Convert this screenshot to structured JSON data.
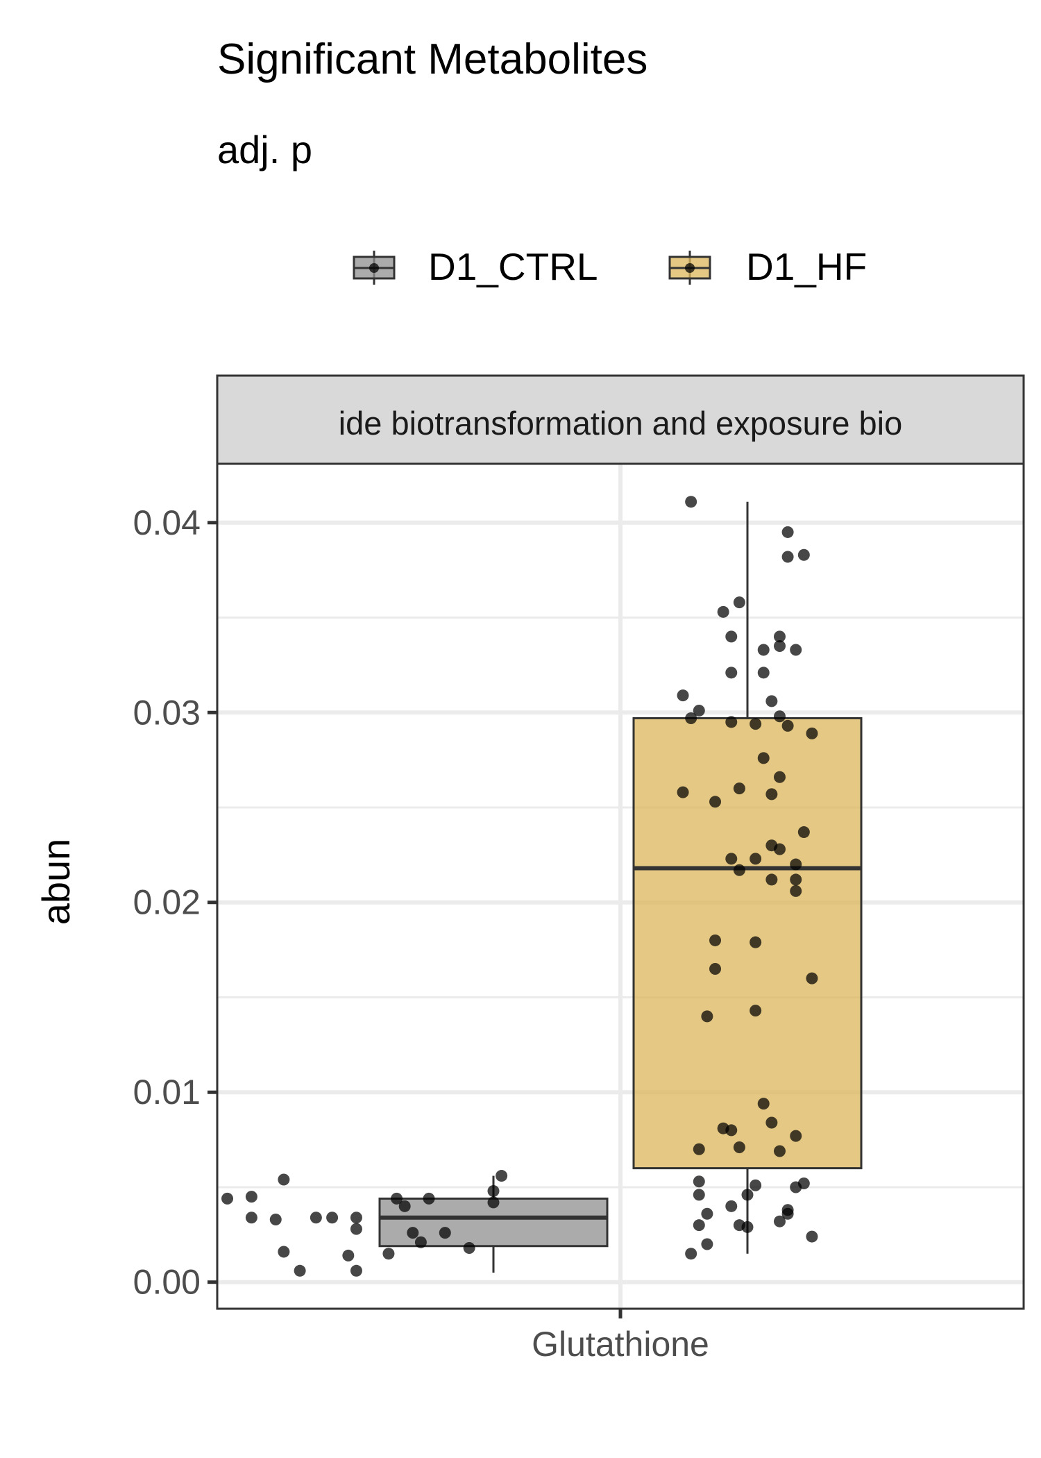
{
  "chart_data": {
    "type": "box",
    "title": "Significant Metabolites",
    "subtitle": "adj. p",
    "facet_label": "ide biotransformation and exposure bio",
    "xlabel": "",
    "ylabel": "abun",
    "categories": [
      "Glutathione"
    ],
    "ylim": [
      -0.0014,
      0.0431
    ],
    "yticks": [
      0.0,
      0.01,
      0.02,
      0.03,
      0.04
    ],
    "ytick_labels": [
      "0.00",
      "0.01",
      "0.02",
      "0.03",
      "0.04"
    ],
    "grid": true,
    "legend_position": "top",
    "series": [
      {
        "name": "D1_CTRL",
        "color": "#8f8f8f",
        "box": {
          "whisker_low": 0.0005,
          "q1": 0.0019,
          "median": 0.0034,
          "q3": 0.0044,
          "whisker_high": 0.0056
        },
        "points": [
          {
            "dx": -0.33,
            "y": 0.0044
          },
          {
            "dx": -0.3,
            "y": 0.0045
          },
          {
            "dx": -0.26,
            "y": 0.0054
          },
          {
            "dx": -0.3,
            "y": 0.0034
          },
          {
            "dx": -0.27,
            "y": 0.0033
          },
          {
            "dx": -0.22,
            "y": 0.0034
          },
          {
            "dx": -0.2,
            "y": 0.0034
          },
          {
            "dx": -0.17,
            "y": 0.0034
          },
          {
            "dx": -0.17,
            "y": 0.0028
          },
          {
            "dx": -0.26,
            "y": 0.0016
          },
          {
            "dx": -0.18,
            "y": 0.0014
          },
          {
            "dx": -0.13,
            "y": 0.0015
          },
          {
            "dx": -0.24,
            "y": 0.0006
          },
          {
            "dx": -0.17,
            "y": 0.0006
          },
          {
            "dx": -0.12,
            "y": 0.0044
          },
          {
            "dx": -0.08,
            "y": 0.0044
          },
          {
            "dx": -0.11,
            "y": 0.004
          },
          {
            "dx": -0.1,
            "y": 0.0026
          },
          {
            "dx": -0.06,
            "y": 0.0026
          },
          {
            "dx": -0.09,
            "y": 0.0021
          },
          {
            "dx": -0.03,
            "y": 0.0018
          },
          {
            "dx": 0.01,
            "y": 0.0056
          },
          {
            "dx": 0.0,
            "y": 0.0048
          },
          {
            "dx": 0.0,
            "y": 0.0042
          }
        ]
      },
      {
        "name": "D1_HF",
        "color": "#dbb55a",
        "box": {
          "whisker_low": 0.0015,
          "q1": 0.006,
          "median": 0.0218,
          "q3": 0.0297,
          "whisker_high": 0.0411
        },
        "points": [
          {
            "dx": -0.07,
            "y": 0.0411
          },
          {
            "dx": 0.05,
            "y": 0.0395
          },
          {
            "dx": 0.05,
            "y": 0.0382
          },
          {
            "dx": 0.07,
            "y": 0.0383
          },
          {
            "dx": -0.03,
            "y": 0.0353
          },
          {
            "dx": -0.01,
            "y": 0.0358
          },
          {
            "dx": -0.02,
            "y": 0.034
          },
          {
            "dx": 0.04,
            "y": 0.034
          },
          {
            "dx": 0.04,
            "y": 0.0335
          },
          {
            "dx": 0.02,
            "y": 0.0333
          },
          {
            "dx": 0.06,
            "y": 0.0333
          },
          {
            "dx": -0.02,
            "y": 0.0321
          },
          {
            "dx": 0.02,
            "y": 0.0321
          },
          {
            "dx": -0.08,
            "y": 0.0309
          },
          {
            "dx": -0.06,
            "y": 0.0301
          },
          {
            "dx": -0.07,
            "y": 0.0297
          },
          {
            "dx": -0.02,
            "y": 0.0295
          },
          {
            "dx": 0.01,
            "y": 0.0294
          },
          {
            "dx": 0.04,
            "y": 0.0298
          },
          {
            "dx": 0.05,
            "y": 0.0293
          },
          {
            "dx": 0.08,
            "y": 0.0289
          },
          {
            "dx": 0.03,
            "y": 0.0306
          },
          {
            "dx": 0.02,
            "y": 0.0276
          },
          {
            "dx": 0.04,
            "y": 0.0266
          },
          {
            "dx": -0.08,
            "y": 0.0258
          },
          {
            "dx": -0.04,
            "y": 0.0253
          },
          {
            "dx": -0.01,
            "y": 0.026
          },
          {
            "dx": 0.03,
            "y": 0.0257
          },
          {
            "dx": 0.07,
            "y": 0.0237
          },
          {
            "dx": 0.03,
            "y": 0.023
          },
          {
            "dx": 0.04,
            "y": 0.0228
          },
          {
            "dx": 0.06,
            "y": 0.022
          },
          {
            "dx": -0.02,
            "y": 0.0223
          },
          {
            "dx": 0.01,
            "y": 0.0223
          },
          {
            "dx": -0.01,
            "y": 0.0217
          },
          {
            "dx": 0.03,
            "y": 0.0212
          },
          {
            "dx": 0.06,
            "y": 0.0212
          },
          {
            "dx": 0.06,
            "y": 0.0206
          },
          {
            "dx": -0.04,
            "y": 0.018
          },
          {
            "dx": 0.01,
            "y": 0.0179
          },
          {
            "dx": -0.04,
            "y": 0.0165
          },
          {
            "dx": 0.08,
            "y": 0.016
          },
          {
            "dx": 0.01,
            "y": 0.0143
          },
          {
            "dx": -0.05,
            "y": 0.014
          },
          {
            "dx": 0.02,
            "y": 0.0094
          },
          {
            "dx": 0.03,
            "y": 0.0084
          },
          {
            "dx": -0.03,
            "y": 0.0081
          },
          {
            "dx": -0.02,
            "y": 0.008
          },
          {
            "dx": 0.06,
            "y": 0.0077
          },
          {
            "dx": -0.06,
            "y": 0.007
          },
          {
            "dx": -0.01,
            "y": 0.0071
          },
          {
            "dx": 0.04,
            "y": 0.0069
          },
          {
            "dx": -0.06,
            "y": 0.0053
          },
          {
            "dx": 0.01,
            "y": 0.0051
          },
          {
            "dx": 0.07,
            "y": 0.0052
          },
          {
            "dx": 0.06,
            "y": 0.005
          },
          {
            "dx": -0.06,
            "y": 0.0046
          },
          {
            "dx": 0.0,
            "y": 0.0046
          },
          {
            "dx": -0.02,
            "y": 0.004
          },
          {
            "dx": -0.05,
            "y": 0.0036
          },
          {
            "dx": 0.05,
            "y": 0.0036
          },
          {
            "dx": 0.05,
            "y": 0.0038
          },
          {
            "dx": 0.04,
            "y": 0.0032
          },
          {
            "dx": -0.06,
            "y": 0.003
          },
          {
            "dx": -0.01,
            "y": 0.003
          },
          {
            "dx": 0.0,
            "y": 0.0029
          },
          {
            "dx": 0.08,
            "y": 0.0024
          },
          {
            "dx": -0.05,
            "y": 0.002
          },
          {
            "dx": -0.07,
            "y": 0.0015
          }
        ]
      }
    ]
  }
}
